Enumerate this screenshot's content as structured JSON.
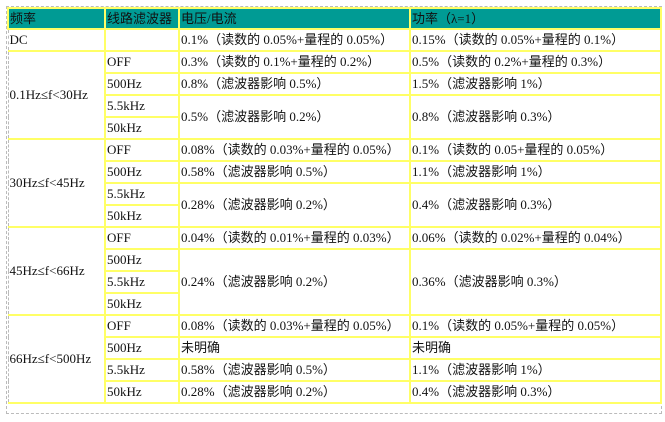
{
  "header": {
    "freq": "频率",
    "filter": "线路滤波器",
    "vi": "电压/电流",
    "power": "功率（λ=1）"
  },
  "colors": {
    "header_bg": "#009b94",
    "border": "#ffff66"
  },
  "dc": {
    "freq": "DC",
    "filter": "",
    "vi": "0.1%（读数的 0.05%+量程的 0.05%）",
    "power": "0.15%（读数的 0.05%+量程的 0.1%）"
  },
  "groups": [
    {
      "freq": "0.1Hz≤f<30Hz",
      "rows": [
        {
          "filter": "OFF",
          "vi": "0.3%（读数的 0.1%+量程的 0.2%）",
          "power": "0.5%（读数的 0.2%+量程的 0.3%）"
        },
        {
          "filter": "500Hz",
          "vi": "0.8%（滤波器影响 0.5%）",
          "power": "1.5%（滤波器影响 1%）"
        },
        {
          "filter": "5.5kHz",
          "vi": "0.5%（滤波器影响 0.2%）",
          "power": "0.8%（滤波器影响 0.3%）",
          "span": 2
        },
        {
          "filter": "50kHz"
        }
      ]
    },
    {
      "freq": "30Hz≤f<45Hz",
      "rows": [
        {
          "filter": "OFF",
          "vi": "0.08%（读数的 0.03%+量程的 0.05%）",
          "power": "0.1%（读数的 0.05+量程的 0.05%）"
        },
        {
          "filter": "500Hz",
          "vi": "0.58%（滤波器影响 0.5%）",
          "power": "1.1%（滤波器影响 1%）"
        },
        {
          "filter": "5.5kHz",
          "vi": "0.28%（滤波器影响 0.2%）",
          "power": "0.4%（滤波器影响 0.3%）",
          "span": 2
        },
        {
          "filter": "50kHz"
        }
      ]
    },
    {
      "freq": "45Hz≤f<66Hz",
      "rows": [
        {
          "filter": "OFF",
          "vi": "0.04%（读数的 0.01%+量程的 0.03%）",
          "power": "0.06%（读数的 0.02%+量程的 0.04%）"
        },
        {
          "filter": "500Hz",
          "vi": "0.24%（滤波器影响 0.2%）",
          "power": "0.36%（滤波器影响 0.3%）",
          "span": 3
        },
        {
          "filter": "5.5kHz"
        },
        {
          "filter": "50kHz"
        }
      ]
    },
    {
      "freq": "66Hz≤f<500Hz",
      "rows": [
        {
          "filter": "OFF",
          "vi": "0.08%（读数的 0.03%+量程的 0.05%）",
          "power": "0.1%（读数的 0.05%+量程的 0.05%）"
        },
        {
          "filter": "500Hz",
          "vi": "未明确",
          "power": "未明确"
        },
        {
          "filter": "5.5kHz",
          "vi": "0.58%（滤波器影响 0.5%）",
          "power": "1.1%（滤波器影响 1%）"
        },
        {
          "filter": "50kHz",
          "vi": "0.28%（滤波器影响 0.2%）",
          "power": "0.4%（滤波器影响 0.3%）"
        }
      ]
    }
  ]
}
